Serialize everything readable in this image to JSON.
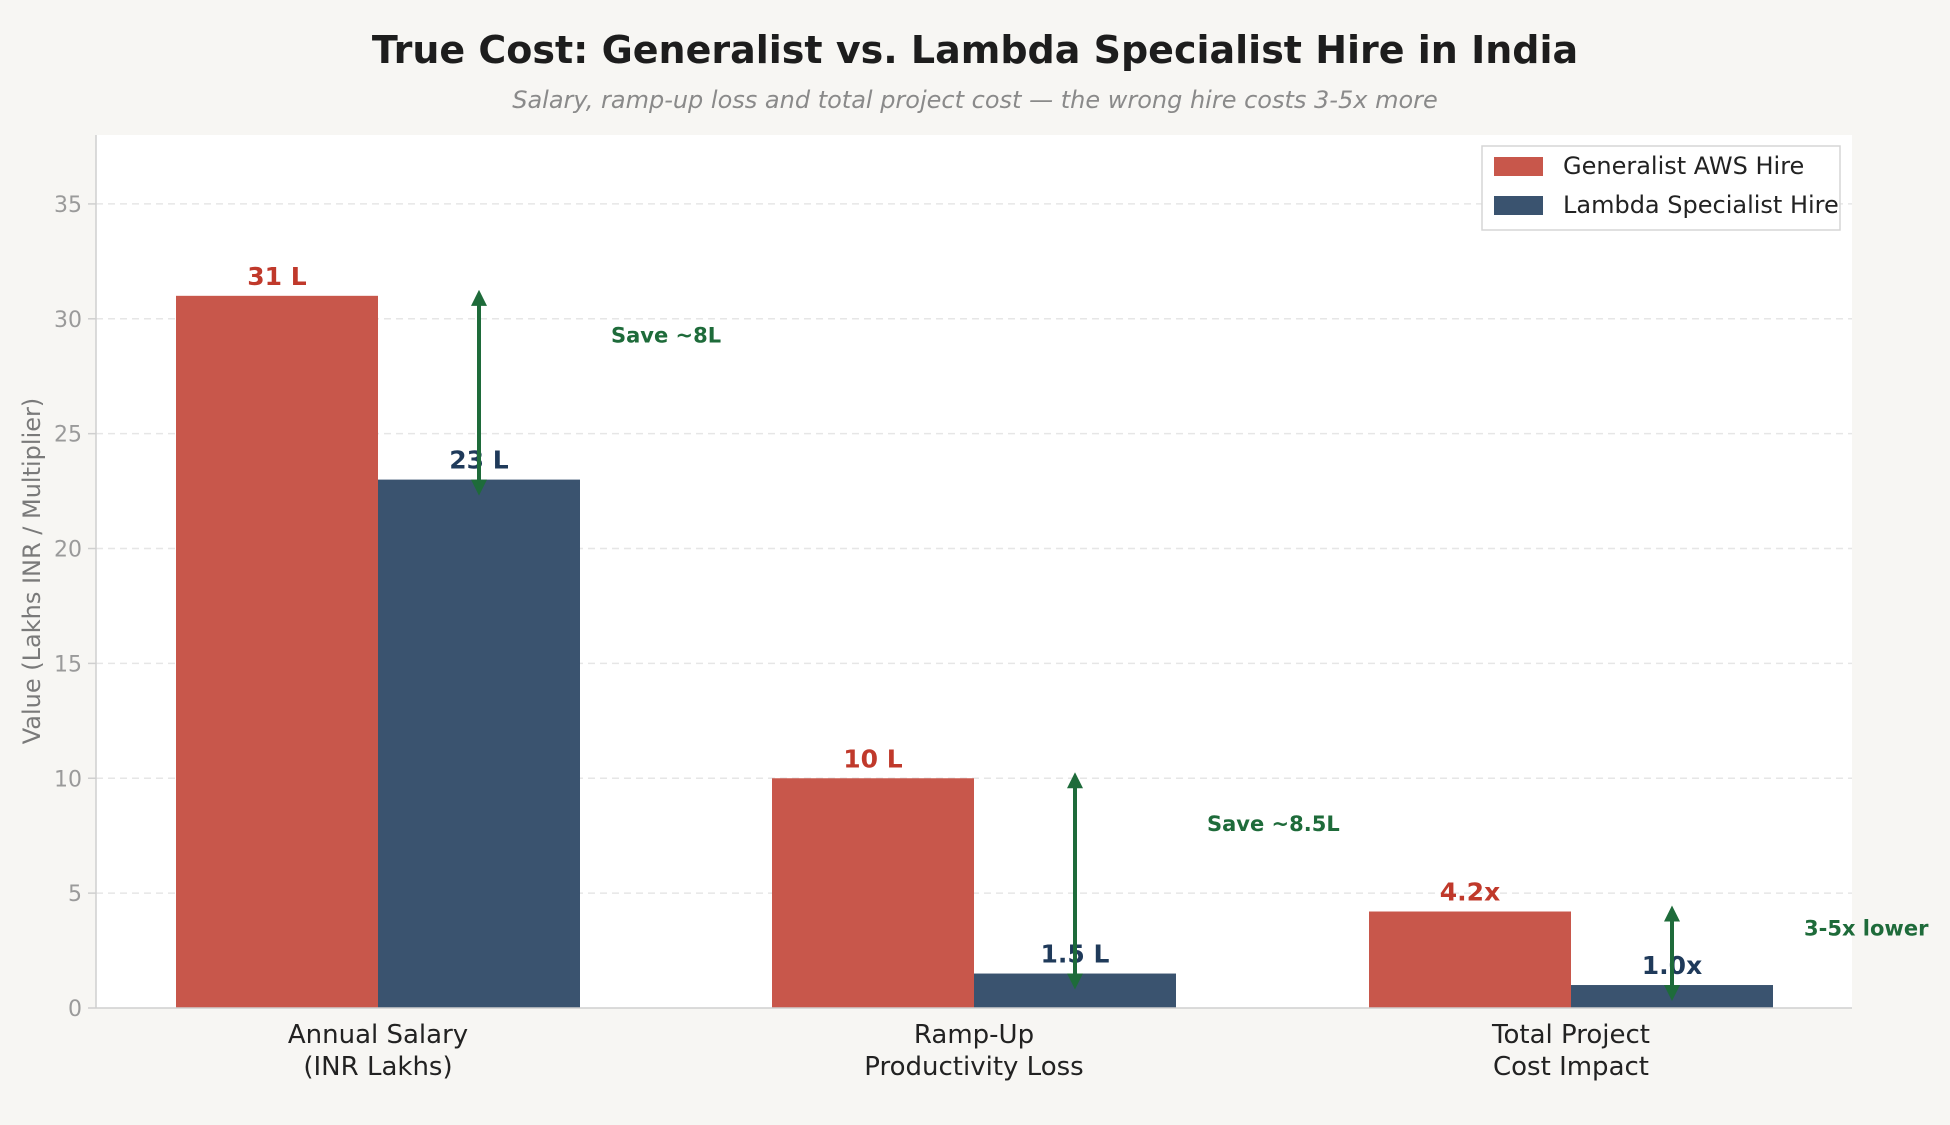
{
  "chart_data": {
    "type": "bar",
    "title": "True Cost: Generalist vs. Lambda Specialist Hire in India",
    "subtitle": "Salary, ramp-up loss and total project cost — the wrong hire costs 3-5x more",
    "ylabel": "Value (Lakhs INR / Multiplier)",
    "xlabel": "",
    "ylim": [
      0,
      38
    ],
    "yticks": [
      0,
      5,
      10,
      15,
      20,
      25,
      30,
      35
    ],
    "grid": true,
    "legend_position": "top-right",
    "categories": [
      [
        "Annual Salary",
        "(INR Lakhs)"
      ],
      [
        "Ramp-Up",
        "Productivity Loss"
      ],
      [
        "Total Project",
        "Cost Impact"
      ]
    ],
    "series": [
      {
        "name": "Generalist AWS Hire",
        "color": "#c8574b",
        "label_color": "#c0392b",
        "values": [
          31,
          10,
          4.2
        ],
        "labels": [
          "31 L",
          "10 L",
          "4.2x"
        ]
      },
      {
        "name": "Lambda Specialist Hire",
        "color": "#3a536f",
        "label_color": "#1f3a5a",
        "values": [
          23,
          1.5,
          1.0
        ],
        "labels": [
          "23 L",
          "1.5 L",
          "1.0x"
        ]
      }
    ],
    "annotations": [
      {
        "text": "Save ~8L",
        "from": 23,
        "to": 31,
        "color": "#1e6b3a"
      },
      {
        "text": "Save ~8.5L",
        "from": 1.5,
        "to": 10,
        "color": "#1e6b3a"
      },
      {
        "text": "3-5x lower",
        "from": 1.0,
        "to": 4.2,
        "color": "#1e6b3a"
      }
    ]
  }
}
